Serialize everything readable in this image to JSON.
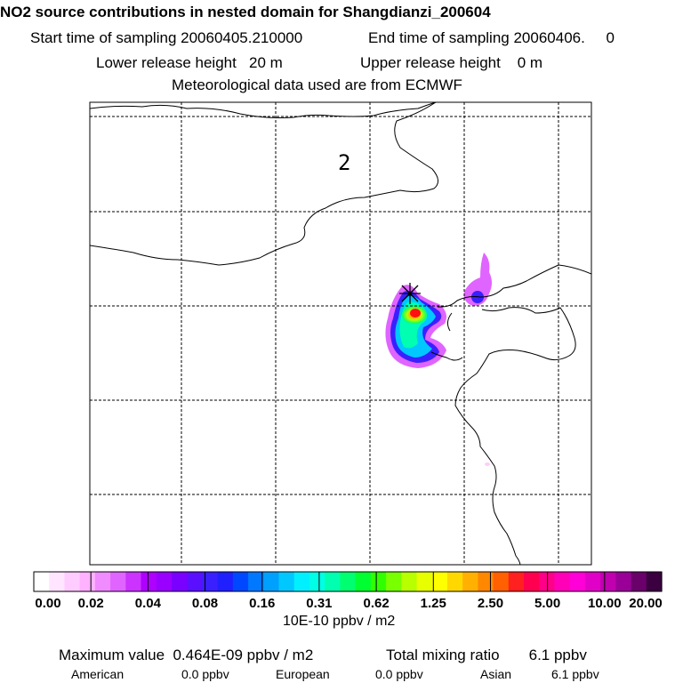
{
  "header": {
    "title": "NO2 source contributions in nested domain for Shangdianzi_200604",
    "start_label": "Start time of sampling 20060405.210000",
    "end_label": "End time of sampling 20060406.     0",
    "lower_label": "Lower release height   20 m",
    "upper_label": "Upper release height    0 m",
    "met_label": "Meteorological data used are from ECMWF"
  },
  "map": {
    "region_label": "2",
    "site_marker": "star-marker"
  },
  "colorbar": {
    "colors": [
      "#ffffff",
      "#ffe5ff",
      "#ffccff",
      "#ffb2ff",
      "#f08cff",
      "#e064ff",
      "#cc33ff",
      "#b000ff",
      "#9a00ff",
      "#7a00ff",
      "#5a10ff",
      "#3a20ff",
      "#2020ff",
      "#0048ff",
      "#0078ff",
      "#00a0ff",
      "#00c8ff",
      "#00f0ff",
      "#00ffe6",
      "#00ffb0",
      "#00ff70",
      "#00ff30",
      "#30ff00",
      "#78ff00",
      "#b8ff00",
      "#e8ff00",
      "#ffff00",
      "#ffd800",
      "#ffb000",
      "#ff8800",
      "#ff6000",
      "#ff2020",
      "#ff0050",
      "#ff0088",
      "#ff00b8",
      "#ff00d8",
      "#e000c8",
      "#c000b0",
      "#9a0098",
      "#6a006a",
      "#3a0040"
    ],
    "tick_labels": [
      "0.00",
      "0.02",
      "0.04",
      "0.08",
      "0.16",
      "0.31",
      "0.62",
      "1.25",
      "2.50",
      "5.00",
      "10.00",
      "20.00"
    ],
    "units": "10E-10 ppbv / m2"
  },
  "footer": {
    "max_value": "Maximum value  0.464E-09 ppbv / m2",
    "total_mixing": "Total mixing ratio       6.1 ppbv",
    "american_label": "American",
    "american_value": "0.0 ppbv",
    "european_label": "European",
    "european_value": "0.0 ppbv",
    "asian_label": "Asian",
    "asian_value": "6.1 ppbv"
  },
  "colors": {
    "plume_low": "#e064ff",
    "plume_mid": "#00ffb0",
    "plume_high": "#ff2020"
  }
}
